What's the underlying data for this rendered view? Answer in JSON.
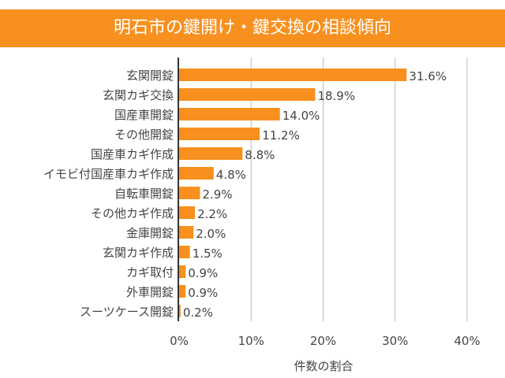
{
  "colors": {
    "accent": "#f7901e",
    "bar": "#f7901e",
    "grid": "#bbbbbb",
    "axis": "#333333"
  },
  "chart_data": {
    "type": "bar",
    "orientation": "horizontal",
    "title": "明石市の鍵開け・鍵交換の相談傾向",
    "xlabel": "件数の割合",
    "ylabel": "",
    "xlim": [
      0,
      40
    ],
    "xticks": [
      "0%",
      "10%",
      "20%",
      "30%",
      "40%"
    ],
    "grid": true,
    "categories": [
      "玄関開錠",
      "玄関カギ交換",
      "国産車開錠",
      "その他開錠",
      "国産車カギ作成",
      "イモビ付国産車カギ作成",
      "自転車開錠",
      "その他カギ作成",
      "金庫開錠",
      "玄関カギ作成",
      "カギ取付",
      "外車開錠",
      "スーツケース開錠"
    ],
    "values": [
      31.6,
      18.9,
      14.0,
      11.2,
      8.8,
      4.8,
      2.9,
      2.2,
      2.0,
      1.5,
      0.9,
      0.9,
      0.2
    ],
    "data_labels": [
      "31.6%",
      "18.9%",
      "14.0%",
      "11.2%",
      "8.8%",
      "4.8%",
      "2.9%",
      "2.2%",
      "2.0%",
      "1.5%",
      "0.9%",
      "0.9%",
      "0.2%"
    ]
  }
}
